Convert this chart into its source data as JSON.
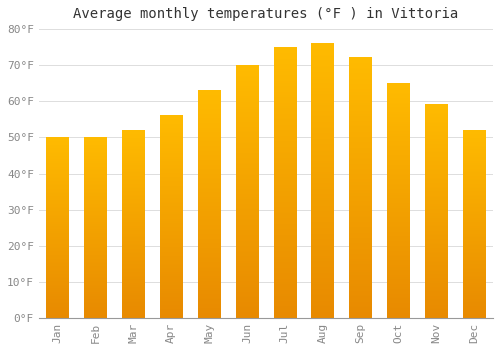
{
  "title": "Average monthly temperatures (°F ) in Vittoria",
  "months": [
    "Jan",
    "Feb",
    "Mar",
    "Apr",
    "May",
    "Jun",
    "Jul",
    "Aug",
    "Sep",
    "Oct",
    "Nov",
    "Dec"
  ],
  "values": [
    50,
    50,
    52,
    56,
    63,
    70,
    75,
    76,
    72,
    65,
    59,
    52
  ],
  "bar_color_top": "#FFBB00",
  "bar_color_bottom": "#E88A00",
  "background_color": "#FFFFFF",
  "grid_color": "#DDDDDD",
  "ylim": [
    0,
    80
  ],
  "yticks": [
    0,
    10,
    20,
    30,
    40,
    50,
    60,
    70,
    80
  ],
  "title_fontsize": 10,
  "tick_fontsize": 8,
  "bar_width": 0.6
}
